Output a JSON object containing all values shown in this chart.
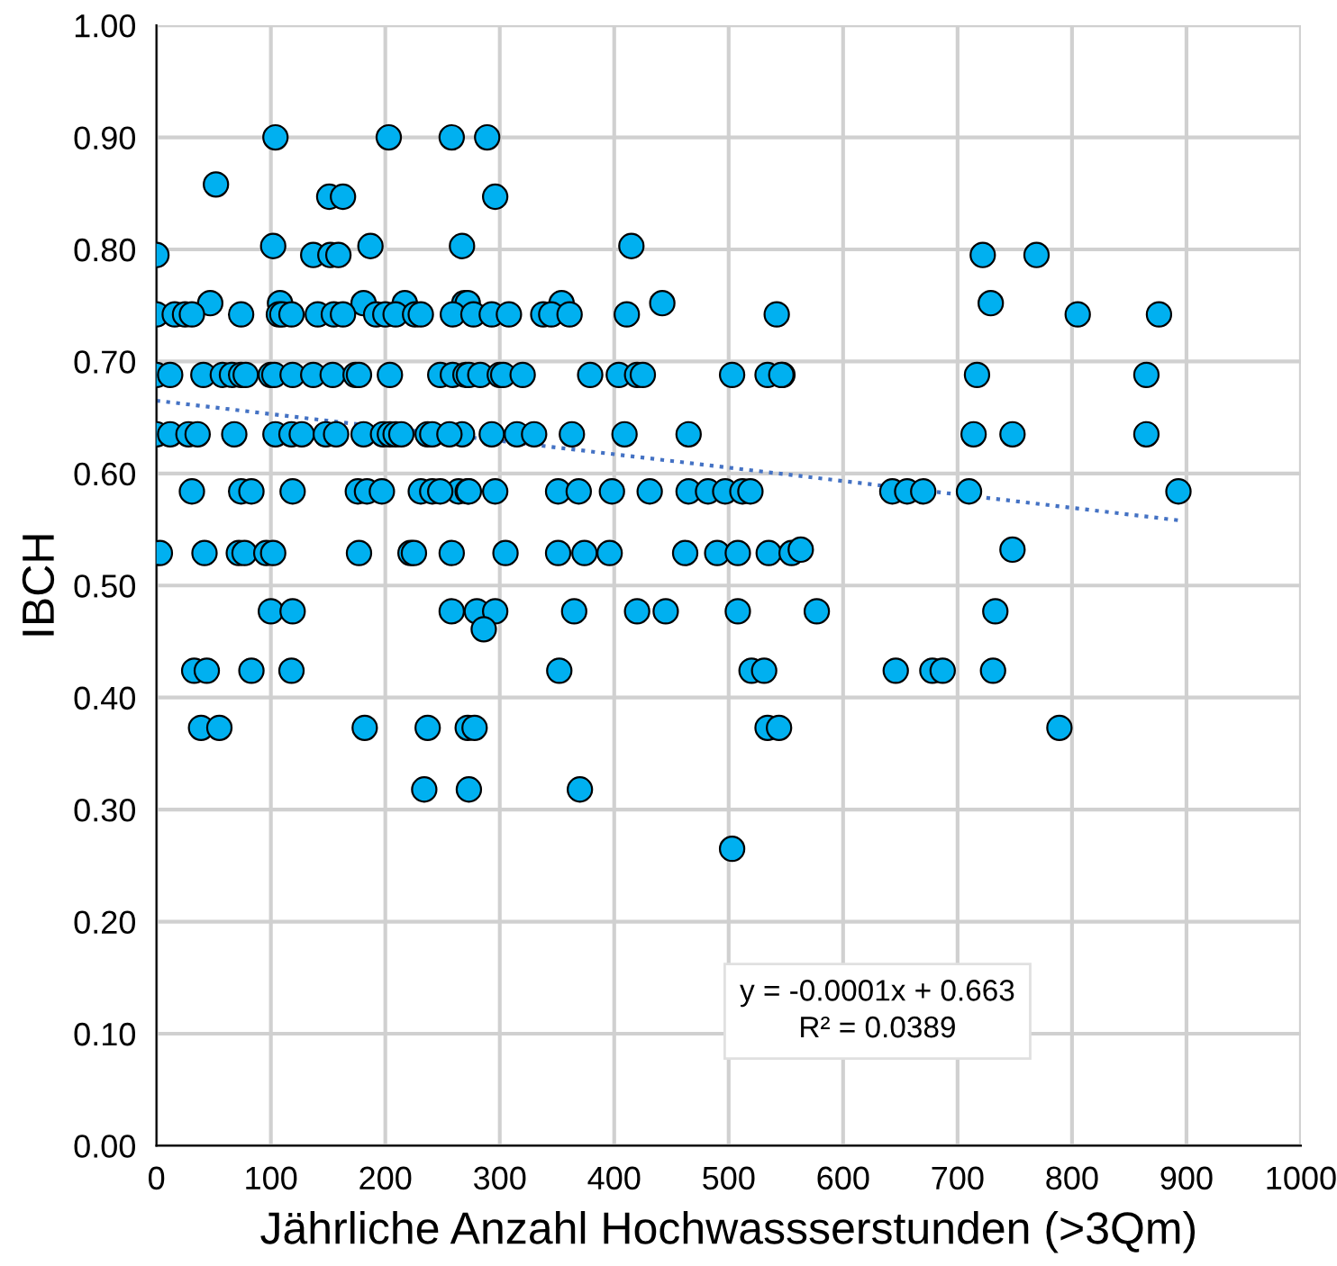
{
  "chart_data": {
    "type": "scatter",
    "xlabel": "Jährliche Anzahl Hochwassserstunden (>3Qm)",
    "ylabel": "IBCH",
    "xlim": [
      0,
      1000
    ],
    "xticks": [
      0,
      100,
      200,
      300,
      400,
      500,
      600,
      700,
      800,
      900,
      1000
    ],
    "ylim": [
      0,
      1
    ],
    "yticks": [
      {
        "value": 0,
        "label": "0.00"
      },
      {
        "value": 0.1,
        "label": "0.10"
      },
      {
        "value": 0.2,
        "label": "0.20"
      },
      {
        "value": 0.3,
        "label": "0.30"
      },
      {
        "value": 0.4,
        "label": "0.40"
      },
      {
        "value": 0.5,
        "label": "0.50"
      },
      {
        "value": 0.6,
        "label": "0.60"
      },
      {
        "value": 0.7,
        "label": "0.70"
      },
      {
        "value": 0.8,
        "label": "0.80"
      },
      {
        "value": 0.9,
        "label": "0.90"
      },
      {
        "value": 1,
        "label": "1.00"
      }
    ],
    "grid": true,
    "legend": false,
    "marker": "circle",
    "annotations": [
      "y = -0.0001x + 0.663",
      "R² = 0.0389"
    ],
    "series": [
      {
        "color": "#00b0f0",
        "x": [
          104,
          203,
          258,
          289,
          52,
          151,
          163,
          296,
          0,
          102,
          137,
          152,
          159,
          187,
          267,
          415,
          722,
          769,
          47,
          108,
          181,
          217,
          269,
          272,
          354,
          442,
          729,
          0,
          16,
          25,
          31,
          74,
          107,
          110,
          118,
          141,
          155,
          163,
          192,
          200,
          209,
          226,
          231,
          259,
          277,
          293,
          308,
          338,
          345,
          361,
          411,
          542,
          805,
          876,
          0,
          12,
          41,
          58,
          66,
          74,
          78,
          100,
          103,
          119,
          137,
          154,
          174,
          177,
          204,
          248,
          259,
          270,
          273,
          283,
          300,
          303,
          320,
          379,
          404,
          420,
          425,
          503,
          534,
          547,
          546,
          717,
          865,
          0,
          12,
          28,
          36,
          68,
          104,
          118,
          127,
          148,
          157,
          181,
          198,
          204,
          209,
          214,
          237,
          267,
          241,
          256,
          293,
          315,
          330,
          363,
          409,
          465,
          714,
          748,
          865,
          31,
          74,
          83,
          119,
          176,
          184,
          197,
          231,
          241,
          264,
          272,
          248,
          273,
          296,
          351,
          369,
          398,
          431,
          465,
          482,
          497,
          512,
          519,
          643,
          656,
          670,
          710,
          893,
          3,
          42,
          72,
          77,
          96,
          102,
          177,
          222,
          225,
          258,
          305,
          351,
          374,
          396,
          462,
          490,
          508,
          535,
          555,
          563,
          748,
          100,
          119,
          258,
          280,
          296,
          365,
          420,
          445,
          508,
          577,
          733,
          286,
          33,
          44,
          83,
          118,
          352,
          520,
          531,
          646,
          678,
          687,
          731,
          39,
          55,
          182,
          237,
          272,
          278,
          534,
          544,
          789,
          234,
          273,
          370,
          503
        ],
        "values": [
          0.9,
          0.9,
          0.9,
          0.9,
          0.858,
          0.847,
          0.847,
          0.847,
          0.795,
          0.803,
          0.795,
          0.795,
          0.795,
          0.803,
          0.803,
          0.803,
          0.795,
          0.795,
          0.752,
          0.752,
          0.752,
          0.752,
          0.752,
          0.752,
          0.752,
          0.752,
          0.752,
          0.742,
          0.742,
          0.742,
          0.742,
          0.742,
          0.742,
          0.742,
          0.742,
          0.742,
          0.742,
          0.742,
          0.742,
          0.742,
          0.742,
          0.742,
          0.742,
          0.742,
          0.742,
          0.742,
          0.742,
          0.742,
          0.742,
          0.742,
          0.742,
          0.742,
          0.742,
          0.742,
          0.688,
          0.688,
          0.688,
          0.688,
          0.688,
          0.688,
          0.688,
          0.688,
          0.688,
          0.688,
          0.688,
          0.688,
          0.688,
          0.688,
          0.688,
          0.688,
          0.688,
          0.688,
          0.688,
          0.688,
          0.688,
          0.688,
          0.688,
          0.688,
          0.688,
          0.688,
          0.688,
          0.688,
          0.688,
          0.688,
          0.688,
          0.688,
          0.688,
          0.635,
          0.635,
          0.635,
          0.635,
          0.635,
          0.635,
          0.635,
          0.635,
          0.635,
          0.635,
          0.635,
          0.635,
          0.635,
          0.635,
          0.635,
          0.635,
          0.635,
          0.635,
          0.635,
          0.635,
          0.635,
          0.635,
          0.635,
          0.635,
          0.635,
          0.635,
          0.635,
          0.635,
          0.584,
          0.584,
          0.584,
          0.584,
          0.584,
          0.584,
          0.584,
          0.584,
          0.584,
          0.584,
          0.584,
          0.584,
          0.584,
          0.584,
          0.584,
          0.584,
          0.584,
          0.584,
          0.584,
          0.584,
          0.584,
          0.584,
          0.584,
          0.584,
          0.584,
          0.584,
          0.584,
          0.584,
          0.529,
          0.529,
          0.529,
          0.529,
          0.529,
          0.529,
          0.529,
          0.529,
          0.529,
          0.529,
          0.529,
          0.529,
          0.529,
          0.529,
          0.529,
          0.529,
          0.529,
          0.529,
          0.529,
          0.532,
          0.532,
          0.477,
          0.477,
          0.477,
          0.477,
          0.477,
          0.477,
          0.477,
          0.477,
          0.477,
          0.477,
          0.477,
          0.461,
          0.424,
          0.424,
          0.424,
          0.424,
          0.424,
          0.424,
          0.424,
          0.424,
          0.424,
          0.424,
          0.424,
          0.373,
          0.373,
          0.373,
          0.373,
          0.373,
          0.373,
          0.373,
          0.373,
          0.373,
          0.318,
          0.318,
          0.318,
          0.265
        ]
      },
      {
        "type": "line",
        "color": "#4472c4",
        "line_style": "dotted",
        "marker": "none",
        "x": [
          0,
          895
        ],
        "values": [
          0.665,
          0.558
        ]
      }
    ]
  }
}
